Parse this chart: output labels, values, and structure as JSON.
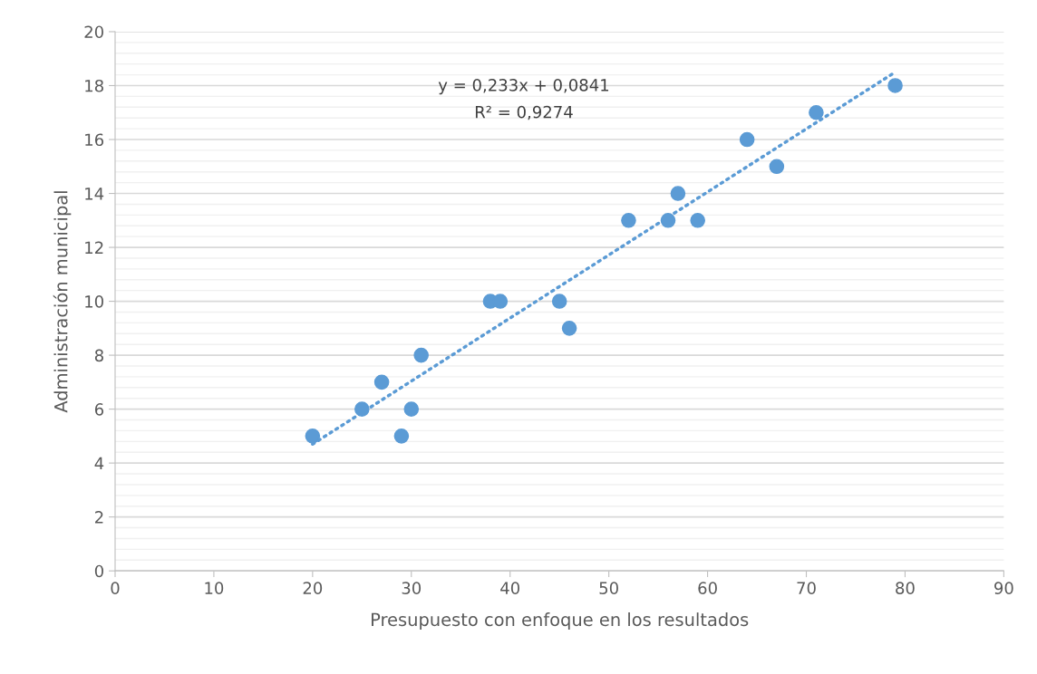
{
  "chart_data": {
    "type": "scatter",
    "xlabel": "Presupuesto con enfoque en los resultados",
    "ylabel": "Administración municipal",
    "series": [
      {
        "color": "#5b9bd5",
        "x": [
          20,
          25,
          27,
          29,
          30,
          31,
          38,
          39,
          45,
          46,
          52,
          56,
          57,
          59,
          64,
          67,
          71,
          79
        ],
        "values": [
          5,
          6,
          7,
          5,
          6,
          8,
          10,
          10,
          10,
          9,
          13,
          13,
          14,
          13,
          16,
          15,
          17,
          18
        ],
        "marker": "circle"
      },
      {
        "type": "line",
        "color": "#5b9bd5",
        "x": [
          20,
          79
        ],
        "values": [
          4.7,
          18.5
        ],
        "line_style": "dotted",
        "marker": "none"
      }
    ],
    "annotations": [
      "y = 0,233x + 0,0841",
      "R² = 0,9274"
    ],
    "xlim": [
      0,
      90
    ],
    "xticks": [
      0,
      10,
      20,
      30,
      40,
      50,
      60,
      70,
      80,
      90
    ],
    "ylim": [
      0,
      20
    ],
    "yticks": [
      0,
      2,
      4,
      6,
      8,
      10,
      12,
      14,
      16,
      18,
      20
    ],
    "grid": "y",
    "legend": false
  }
}
